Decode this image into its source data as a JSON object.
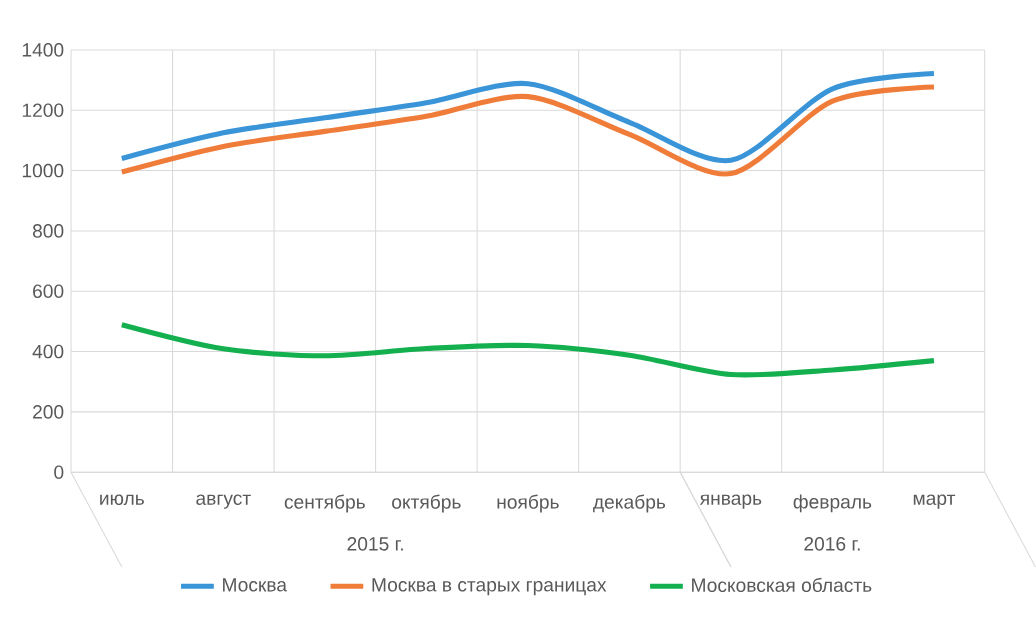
{
  "chart_data": {
    "type": "line",
    "categories": [
      "июль",
      "август",
      "сентябрь",
      "октябрь",
      "ноябрь",
      "декабрь",
      "январь",
      "февраль",
      "март"
    ],
    "series": [
      {
        "name": "Москва",
        "color": "#3a94d8",
        "values": [
          1040,
          1125,
          1175,
          1225,
          1288,
          1160,
          1034,
          1271,
          1322
        ]
      },
      {
        "name": "Москва в старых границах",
        "color": "#f07c3a",
        "values": [
          995,
          1080,
          1130,
          1180,
          1245,
          1120,
          990,
          1230,
          1277
        ]
      },
      {
        "name": "Московская область",
        "color": "#14b050",
        "values": [
          489,
          409,
          386,
          410,
          420,
          388,
          324,
          339,
          370
        ]
      }
    ],
    "annotations": [
      "2015 г.",
      "2016 г."
    ],
    "ylim": [
      0,
      1400
    ],
    "yticks": [
      0,
      200,
      400,
      600,
      800,
      1000,
      1200,
      1400
    ],
    "grid": true,
    "legend": "bottom",
    "marker": "none",
    "line_style": "solid"
  }
}
